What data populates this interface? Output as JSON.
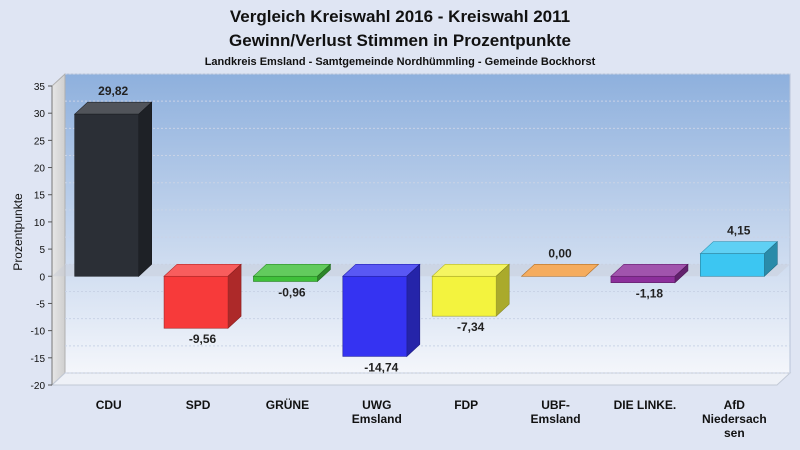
{
  "chart_data": {
    "type": "bar",
    "title": "Vergleich Kreiswahl 2016 - Kreiswahl 2011",
    "subtitle": "Gewinn/Verlust Stimmen in Prozentpunkte",
    "caption": "Landkreis Emsland - Samtgemeinde Nordhümmling - Gemeinde Bockhorst",
    "ylabel": "Prozentpunkte",
    "xlabel": "",
    "ylim": [
      -20,
      35
    ],
    "yticks": [
      35,
      30,
      25,
      20,
      15,
      10,
      5,
      0,
      -5,
      -10,
      -15,
      -20
    ],
    "grid": true,
    "categories": [
      [
        "CDU"
      ],
      [
        "SPD"
      ],
      [
        "GRÜNE"
      ],
      [
        "UWG",
        "Emsland"
      ],
      [
        "FDP"
      ],
      [
        "UBF-",
        "Emsland"
      ],
      [
        "DIE LINKE."
      ],
      [
        "AfD",
        "Niedersach",
        "sen"
      ]
    ],
    "values": [
      29.82,
      -9.56,
      -0.96,
      -14.74,
      -7.34,
      0.0,
      -1.18,
      4.15
    ],
    "value_labels": [
      "29,82",
      "-9,56",
      "-0,96",
      "-14,74",
      "-7,34",
      "0,00",
      "-1,18",
      "4,15"
    ],
    "colors": [
      "#2b2f36",
      "#f73a3a",
      "#3fc03a",
      "#3533f2",
      "#f3f33e",
      "#f39a3b",
      "#8c2f9b",
      "#3cc6f2"
    ]
  }
}
